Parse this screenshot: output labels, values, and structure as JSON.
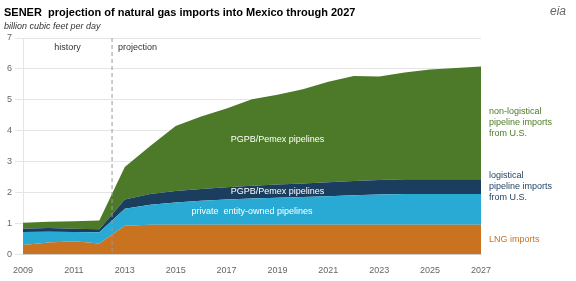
{
  "chart_data": {
    "type": "area",
    "stacked": true,
    "title": "SENER  projection of natural gas imports into Mexico through 2027",
    "subtitle": "billion cubic feet per day",
    "x": [
      2009,
      2010,
      2011,
      2012,
      2013,
      2014,
      2015,
      2016,
      2017,
      2018,
      2019,
      2020,
      2021,
      2022,
      2023,
      2024,
      2025,
      2026,
      2027
    ],
    "series": [
      {
        "name": "LNG imports",
        "color": "#c97220",
        "values": [
          0.3,
          0.38,
          0.42,
          0.35,
          0.92,
          0.95,
          0.95,
          0.95,
          0.95,
          0.95,
          0.95,
          0.95,
          0.95,
          0.95,
          0.95,
          0.95,
          0.95,
          0.95,
          0.95
        ]
      },
      {
        "name": "private  entity-owned pipelines",
        "color": "#29aad4",
        "values": [
          0.42,
          0.35,
          0.3,
          0.36,
          0.55,
          0.65,
          0.72,
          0.78,
          0.82,
          0.85,
          0.88,
          0.9,
          0.93,
          0.96,
          0.98,
          1.0,
          1.0,
          1.0,
          1.0
        ]
      },
      {
        "name": "logistical\npipeline imports\nfrom U.S.",
        "color": "#1b3d5e",
        "values": [
          0.1,
          0.12,
          0.1,
          0.1,
          0.3,
          0.35,
          0.38,
          0.38,
          0.4,
          0.42,
          0.43,
          0.44,
          0.45,
          0.46,
          0.47,
          0.48,
          0.48,
          0.48,
          0.48
        ]
      },
      {
        "name": "non-logistical\npipeline imports\nfrom U.S.",
        "color": "#4d7a28",
        "values": [
          0.2,
          0.2,
          0.25,
          0.28,
          1.05,
          1.55,
          2.1,
          2.35,
          2.55,
          2.8,
          2.9,
          3.05,
          3.25,
          3.4,
          3.35,
          3.45,
          3.55,
          3.6,
          3.65
        ]
      }
    ],
    "vline": 2012.5,
    "annotations": [
      "history",
      "projection",
      "PGPB/Pemex pipelines",
      "PGPB/Pemex pipelines",
      "eia"
    ],
    "xlim": [
      2009,
      2027
    ],
    "ylim": [
      0,
      7
    ],
    "xticks": [
      2009,
      2011,
      2013,
      2015,
      2017,
      2019,
      2021,
      2023,
      2025,
      2027
    ],
    "yticks": [
      0,
      1,
      2,
      3,
      4,
      5,
      6,
      7
    ],
    "grid": "y"
  }
}
